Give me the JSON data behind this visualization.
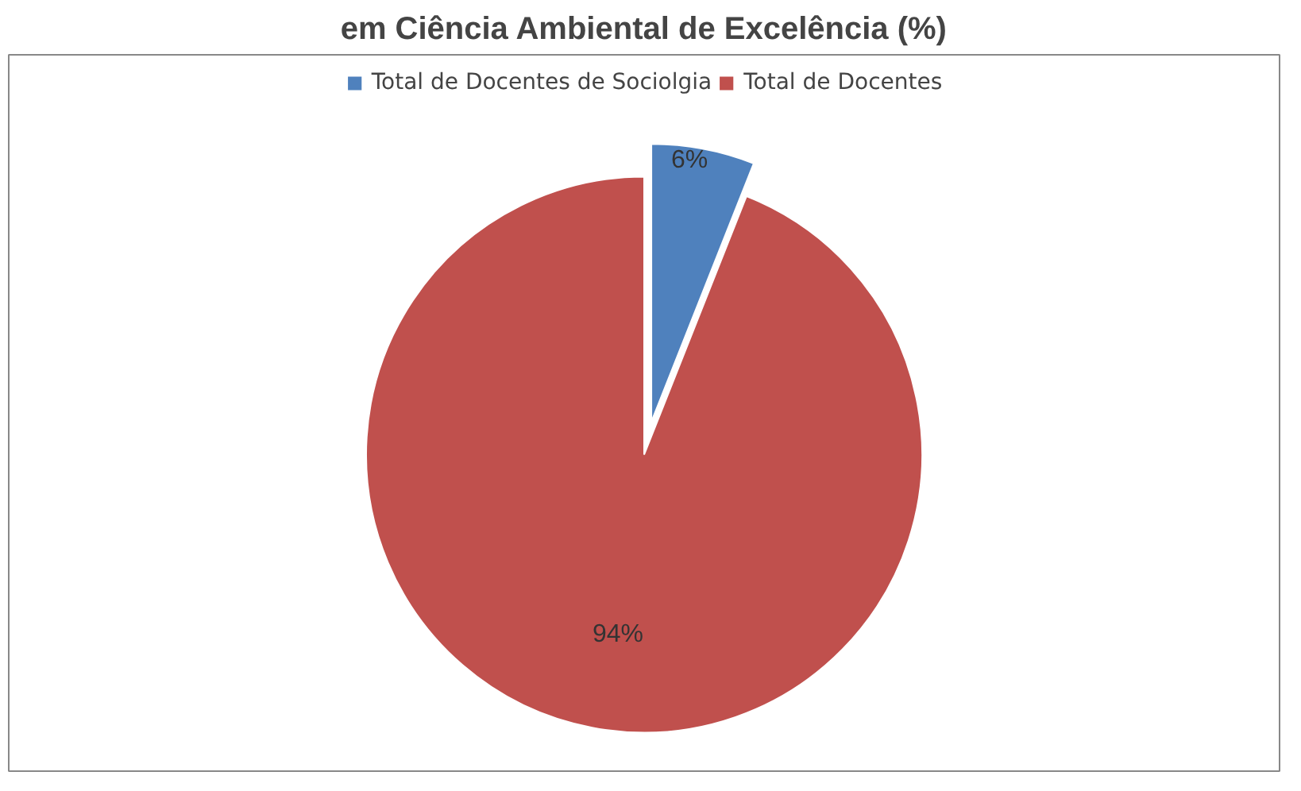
{
  "chart_data": {
    "type": "pie",
    "title": "em Ciência Ambiental de Excelência (%)",
    "categories": [
      "Total de Docentes de Sociolgia",
      "Total de Docentes"
    ],
    "values": [
      6,
      94
    ],
    "colors": [
      "#4f81bd",
      "#c0504d"
    ],
    "value_labels": [
      "6%",
      "94%"
    ],
    "legend": "top"
  }
}
